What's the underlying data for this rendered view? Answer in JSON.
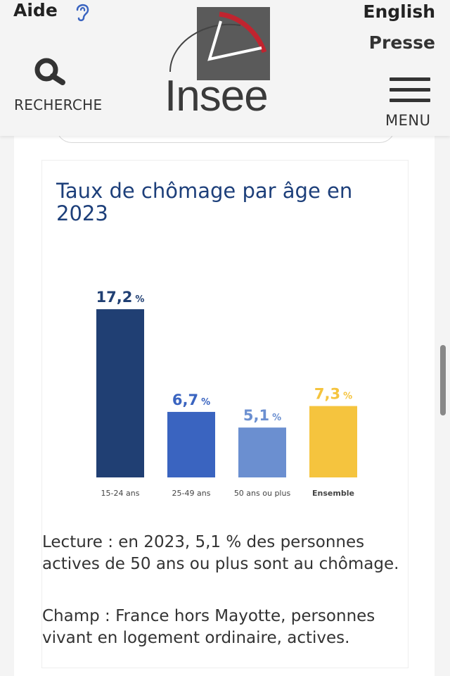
{
  "header": {
    "aide_label": "Aide",
    "english_label": "English",
    "presse_label": "Presse",
    "search_label": "RECHERCHE",
    "logo_text": "Insee",
    "menu_label": "MENU"
  },
  "colors": {
    "title": "#1d3f7a",
    "bar_dark": "#203f73",
    "bar_mid": "#3a64c0",
    "bar_light": "#6b8fd0",
    "bar_yellow": "#f5c43e",
    "logo_red": "#c0242f"
  },
  "chart_data": {
    "type": "bar",
    "title": "Taux de chômage par âge en 2023",
    "categories": [
      "15-24 ans",
      "25-49 ans",
      "50 ans ou plus",
      "Ensemble"
    ],
    "values": [
      17.2,
      6.7,
      5.1,
      7.3
    ],
    "value_labels": [
      "17,2",
      "6,7",
      "5,1",
      "7,3"
    ],
    "unit": "%",
    "ylim": [
      0,
      18
    ],
    "xlabel": "",
    "ylabel": "",
    "grid": false,
    "bar_colors": [
      "#203f73",
      "#3a64c0",
      "#6b8fd0",
      "#f5c43e"
    ],
    "label_colors": [
      "#203f73",
      "#3a64c0",
      "#6b8fd0",
      "#f5c43e"
    ]
  },
  "notes": {
    "lecture": "Lecture : en 2023, 5,1 % des personnes actives de 50 ans ou plus sont au chômage.",
    "champ": "Champ : France hors Mayotte, personnes vivant en logement ordinaire, actives."
  }
}
